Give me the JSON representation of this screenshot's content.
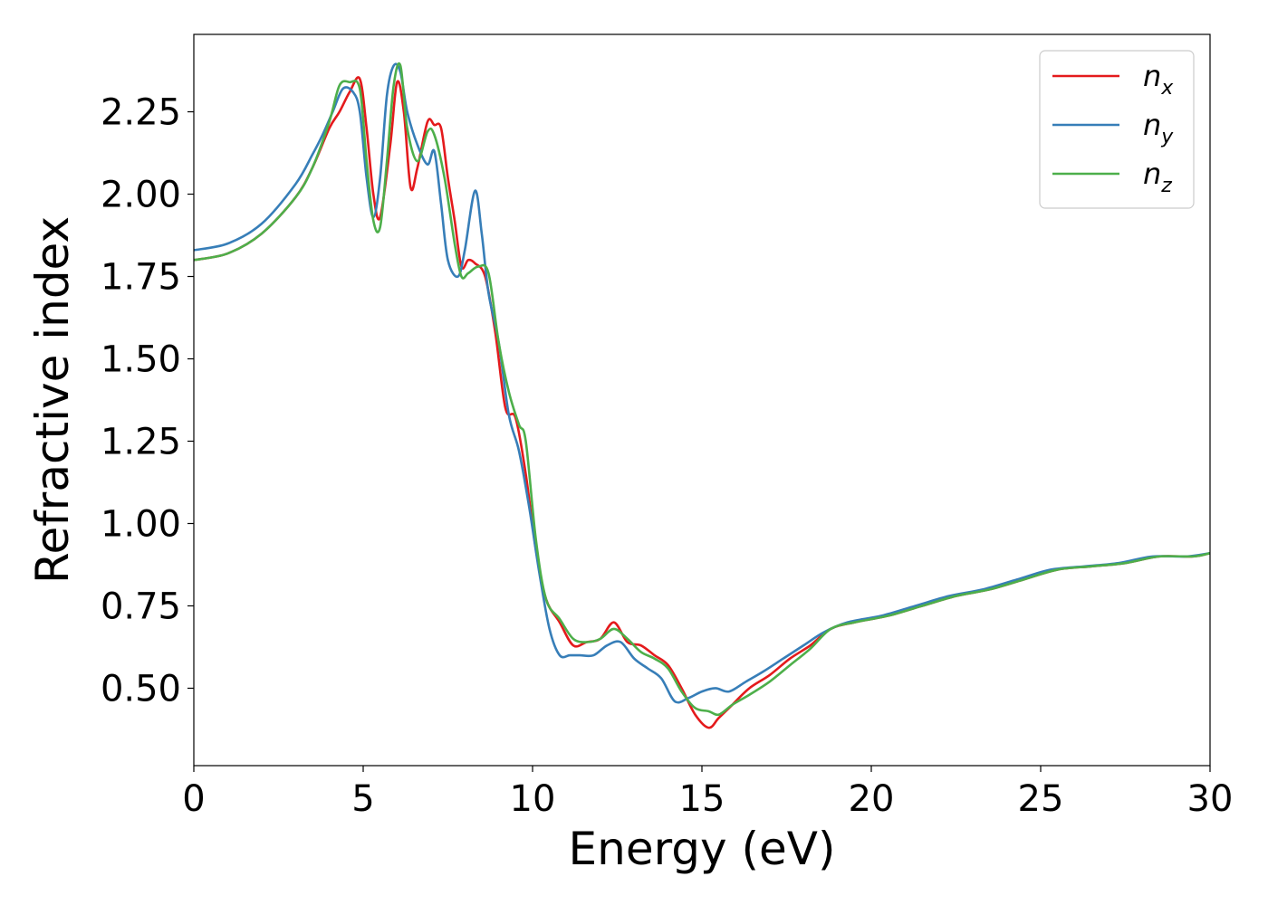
{
  "chart_data": {
    "type": "line",
    "title": "",
    "xlabel": "Energy (eV)",
    "ylabel": "Refractive index",
    "xlim": [
      0,
      30
    ],
    "ylim": [
      0.265,
      2.485
    ],
    "xticks": [
      0,
      5,
      10,
      15,
      20,
      25,
      30
    ],
    "xtick_labels": [
      "0",
      "5",
      "10",
      "15",
      "20",
      "25",
      "30"
    ],
    "yticks": [
      0.5,
      0.75,
      1.0,
      1.25,
      1.5,
      1.75,
      2.0,
      2.25
    ],
    "ytick_labels": [
      "0.50",
      "0.75",
      "1.00",
      "1.25",
      "1.50",
      "1.75",
      "2.00",
      "2.25"
    ],
    "grid": false,
    "legend_position": "top-right",
    "series": [
      {
        "name": "n_x",
        "legend_base": "n",
        "legend_sub": "x",
        "color": "#e41a1c",
        "x": [
          0,
          1,
          2,
          3,
          3.5,
          4,
          4.3,
          4.6,
          4.9,
          5.1,
          5.3,
          5.5,
          5.8,
          6.0,
          6.2,
          6.4,
          6.6,
          6.9,
          7.1,
          7.3,
          7.5,
          7.7,
          7.9,
          8.1,
          8.3,
          8.6,
          8.9,
          9.2,
          9.5,
          9.8,
          10.1,
          10.4,
          10.8,
          11.2,
          11.6,
          12.0,
          12.4,
          12.8,
          13.2,
          13.6,
          14.0,
          14.4,
          14.8,
          15.2,
          15.5,
          15.9,
          16.4,
          17.0,
          17.6,
          18.2,
          18.8,
          19.5,
          20.5,
          21.5,
          22.5,
          23.5,
          24.5,
          25.5,
          26.5,
          27.5,
          28.5,
          29.5,
          30
        ],
        "y": [
          1.8,
          1.82,
          1.88,
          1.99,
          2.08,
          2.2,
          2.25,
          2.31,
          2.35,
          2.2,
          2.0,
          1.93,
          2.15,
          2.34,
          2.25,
          2.02,
          2.08,
          2.22,
          2.21,
          2.2,
          2.05,
          1.92,
          1.78,
          1.8,
          1.79,
          1.75,
          1.58,
          1.35,
          1.32,
          1.15,
          0.92,
          0.77,
          0.7,
          0.63,
          0.64,
          0.65,
          0.7,
          0.64,
          0.63,
          0.6,
          0.57,
          0.5,
          0.42,
          0.38,
          0.41,
          0.45,
          0.5,
          0.54,
          0.59,
          0.63,
          0.68,
          0.7,
          0.72,
          0.75,
          0.78,
          0.8,
          0.83,
          0.86,
          0.87,
          0.88,
          0.9,
          0.9,
          0.91
        ]
      },
      {
        "name": "n_y",
        "legend_base": "n",
        "legend_sub": "y",
        "color": "#377eb8",
        "x": [
          0,
          1,
          2,
          3,
          3.5,
          3.8,
          4.1,
          4.4,
          4.7,
          4.9,
          5.1,
          5.3,
          5.5,
          5.7,
          5.9,
          6.1,
          6.3,
          6.6,
          6.9,
          7.1,
          7.3,
          7.5,
          7.8,
          8.0,
          8.3,
          8.5,
          8.7,
          9.0,
          9.3,
          9.6,
          9.9,
          10.2,
          10.5,
          10.8,
          11.1,
          11.4,
          11.8,
          12.2,
          12.6,
          13.0,
          13.4,
          13.8,
          14.2,
          14.6,
          15.0,
          15.4,
          15.8,
          16.3,
          16.8,
          17.4,
          18.0,
          18.6,
          19.3,
          20.3,
          21.3,
          22.3,
          23.3,
          24.3,
          25.3,
          26.3,
          27.3,
          28.3,
          29.3,
          30
        ],
        "y": [
          1.83,
          1.85,
          1.91,
          2.03,
          2.12,
          2.18,
          2.25,
          2.32,
          2.31,
          2.25,
          2.05,
          1.93,
          2.05,
          2.3,
          2.39,
          2.37,
          2.25,
          2.15,
          2.09,
          2.13,
          1.97,
          1.8,
          1.75,
          1.83,
          2.01,
          1.88,
          1.7,
          1.55,
          1.33,
          1.22,
          1.05,
          0.85,
          0.68,
          0.6,
          0.6,
          0.6,
          0.6,
          0.63,
          0.64,
          0.59,
          0.56,
          0.53,
          0.46,
          0.47,
          0.49,
          0.5,
          0.49,
          0.52,
          0.55,
          0.59,
          0.63,
          0.67,
          0.7,
          0.72,
          0.75,
          0.78,
          0.8,
          0.83,
          0.86,
          0.87,
          0.88,
          0.9,
          0.9,
          0.91
        ]
      },
      {
        "name": "n_z",
        "legend_base": "n",
        "legend_sub": "z",
        "color": "#4daf4a",
        "x": [
          0,
          1,
          2,
          3,
          3.5,
          4,
          4.3,
          4.6,
          4.9,
          5.1,
          5.3,
          5.5,
          5.7,
          5.9,
          6.1,
          6.3,
          6.6,
          6.9,
          7.1,
          7.4,
          7.7,
          7.9,
          8.1,
          8.4,
          8.7,
          9.0,
          9.3,
          9.6,
          9.8,
          10.1,
          10.4,
          10.8,
          11.2,
          11.6,
          12.0,
          12.4,
          12.8,
          13.2,
          13.6,
          14.0,
          14.4,
          14.8,
          15.2,
          15.5,
          15.9,
          16.4,
          17.0,
          17.6,
          18.2,
          18.8,
          19.5,
          20.5,
          21.5,
          22.5,
          23.5,
          24.5,
          25.5,
          26.5,
          27.5,
          28.5,
          29.5,
          30
        ],
        "y": [
          1.8,
          1.82,
          1.88,
          1.99,
          2.08,
          2.22,
          2.33,
          2.34,
          2.32,
          2.1,
          1.92,
          1.9,
          2.1,
          2.33,
          2.39,
          2.2,
          2.1,
          2.19,
          2.18,
          2.05,
          1.85,
          1.75,
          1.76,
          1.78,
          1.76,
          1.55,
          1.4,
          1.3,
          1.25,
          0.95,
          0.77,
          0.71,
          0.65,
          0.64,
          0.65,
          0.68,
          0.65,
          0.61,
          0.59,
          0.56,
          0.49,
          0.44,
          0.43,
          0.42,
          0.45,
          0.48,
          0.52,
          0.57,
          0.62,
          0.68,
          0.7,
          0.72,
          0.75,
          0.78,
          0.8,
          0.83,
          0.86,
          0.87,
          0.88,
          0.9,
          0.9,
          0.91
        ]
      }
    ]
  }
}
